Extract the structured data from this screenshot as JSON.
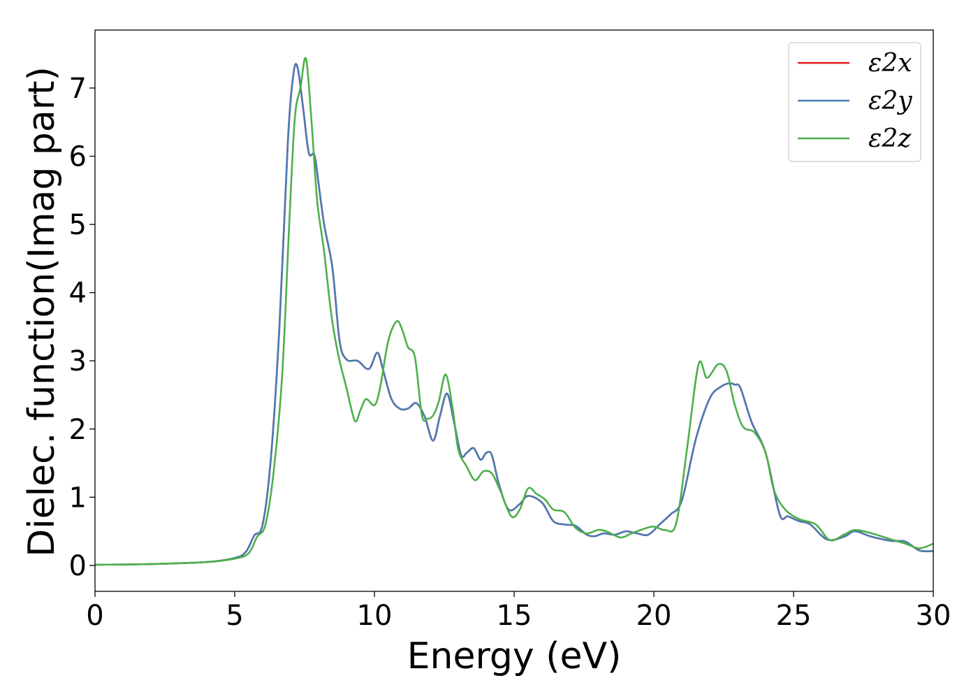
{
  "chart_data": {
    "type": "line",
    "title": "",
    "xlabel": "Energy (eV)",
    "ylabel": "Dielec. function(Imag part)",
    "xlim": [
      0,
      30
    ],
    "ylim": [
      -0.38,
      7.85
    ],
    "xticks": [
      0,
      5,
      10,
      15,
      20,
      25,
      30
    ],
    "yticks": [
      0,
      1,
      2,
      3,
      4,
      5,
      6,
      7
    ],
    "grid": false,
    "legend_position": "top-right",
    "series": [
      {
        "name": "ε2x",
        "color": "#e41a1c",
        "x": [
          0,
          2,
          4,
          5,
          5.4,
          5.7,
          6.0,
          6.3,
          6.6,
          6.9,
          7.1,
          7.25,
          7.45,
          7.65,
          7.85,
          8.0,
          8.2,
          8.5,
          8.75,
          9.0,
          9.4,
          9.8,
          10.1,
          10.3,
          10.6,
          10.9,
          11.2,
          11.5,
          11.8,
          12.1,
          12.35,
          12.6,
          12.85,
          13.1,
          13.3,
          13.55,
          13.8,
          14.0,
          14.2,
          14.45,
          14.8,
          15.2,
          15.5,
          16.0,
          16.4,
          16.8,
          17.2,
          17.6,
          17.9,
          18.2,
          18.6,
          19.0,
          19.4,
          19.8,
          20.2,
          20.6,
          21.0,
          21.5,
          22.0,
          22.4,
          22.7,
          22.9,
          23.1,
          23.5,
          24.0,
          24.5,
          24.8,
          25.2,
          25.6,
          26.2,
          26.8,
          27.2,
          27.8,
          28.5,
          29.0,
          29.5,
          30.0
        ],
        "values": [
          0.01,
          0.02,
          0.05,
          0.11,
          0.2,
          0.44,
          0.6,
          1.6,
          3.5,
          6.2,
          7.2,
          7.3,
          6.7,
          6.05,
          6.02,
          5.6,
          5.0,
          4.35,
          3.3,
          3.02,
          3.0,
          2.88,
          3.12,
          2.88,
          2.45,
          2.3,
          2.3,
          2.38,
          2.18,
          1.83,
          2.2,
          2.52,
          2.1,
          1.62,
          1.65,
          1.72,
          1.55,
          1.65,
          1.62,
          1.2,
          0.82,
          0.9,
          1.02,
          0.92,
          0.65,
          0.6,
          0.58,
          0.45,
          0.43,
          0.47,
          0.45,
          0.5,
          0.47,
          0.45,
          0.6,
          0.75,
          0.95,
          1.85,
          2.45,
          2.62,
          2.67,
          2.65,
          2.6,
          2.1,
          1.65,
          0.75,
          0.72,
          0.65,
          0.6,
          0.38,
          0.42,
          0.5,
          0.42,
          0.36,
          0.35,
          0.22,
          0.21
        ]
      },
      {
        "name": "ε2y",
        "color": "#4a7bb4",
        "x": [
          0,
          2,
          4,
          5,
          5.4,
          5.7,
          6.0,
          6.3,
          6.6,
          6.9,
          7.1,
          7.25,
          7.45,
          7.65,
          7.85,
          8.0,
          8.2,
          8.5,
          8.75,
          9.0,
          9.4,
          9.8,
          10.1,
          10.3,
          10.6,
          10.9,
          11.2,
          11.5,
          11.8,
          12.1,
          12.35,
          12.6,
          12.85,
          13.1,
          13.3,
          13.55,
          13.8,
          14.0,
          14.2,
          14.45,
          14.8,
          15.2,
          15.5,
          16.0,
          16.4,
          16.8,
          17.2,
          17.6,
          17.9,
          18.2,
          18.6,
          19.0,
          19.4,
          19.8,
          20.2,
          20.6,
          21.0,
          21.5,
          22.0,
          22.4,
          22.7,
          22.9,
          23.1,
          23.5,
          24.0,
          24.5,
          24.8,
          25.2,
          25.6,
          26.2,
          26.8,
          27.2,
          27.8,
          28.5,
          29.0,
          29.5,
          30.0
        ],
        "values": [
          0.01,
          0.02,
          0.05,
          0.11,
          0.2,
          0.44,
          0.6,
          1.6,
          3.5,
          6.2,
          7.2,
          7.3,
          6.7,
          6.05,
          6.02,
          5.6,
          5.0,
          4.35,
          3.3,
          3.02,
          3.0,
          2.88,
          3.12,
          2.88,
          2.45,
          2.3,
          2.3,
          2.38,
          2.18,
          1.83,
          2.2,
          2.52,
          2.1,
          1.62,
          1.65,
          1.72,
          1.55,
          1.65,
          1.62,
          1.2,
          0.82,
          0.9,
          1.02,
          0.92,
          0.65,
          0.6,
          0.58,
          0.45,
          0.43,
          0.47,
          0.45,
          0.5,
          0.47,
          0.45,
          0.6,
          0.75,
          0.95,
          1.85,
          2.45,
          2.62,
          2.67,
          2.65,
          2.6,
          2.1,
          1.65,
          0.75,
          0.72,
          0.65,
          0.6,
          0.38,
          0.42,
          0.5,
          0.42,
          0.36,
          0.35,
          0.22,
          0.21
        ]
      },
      {
        "name": "ε2z",
        "color": "#4daf4a",
        "x": [
          0,
          2,
          4,
          5,
          5.5,
          5.8,
          6.1,
          6.4,
          6.7,
          6.95,
          7.15,
          7.35,
          7.55,
          7.75,
          7.95,
          8.2,
          8.45,
          8.7,
          9.0,
          9.3,
          9.5,
          9.7,
          10.0,
          10.2,
          10.5,
          10.8,
          11.0,
          11.2,
          11.45,
          11.7,
          11.9,
          12.1,
          12.3,
          12.55,
          12.8,
          13.0,
          13.3,
          13.6,
          13.9,
          14.2,
          14.5,
          14.9,
          15.2,
          15.5,
          15.8,
          16.1,
          16.4,
          16.8,
          17.2,
          17.6,
          18.0,
          18.3,
          18.8,
          19.2,
          19.6,
          20.0,
          20.4,
          20.8,
          21.2,
          21.6,
          21.9,
          22.3,
          22.6,
          22.9,
          23.2,
          23.6,
          24.0,
          24.3,
          24.7,
          25.2,
          25.8,
          26.3,
          26.8,
          27.2,
          27.8,
          28.5,
          29.0,
          29.5,
          30.0
        ],
        "values": [
          0.01,
          0.02,
          0.05,
          0.1,
          0.18,
          0.42,
          0.6,
          1.4,
          2.8,
          5.0,
          6.55,
          7.0,
          7.43,
          6.5,
          5.35,
          4.6,
          3.7,
          3.1,
          2.6,
          2.12,
          2.28,
          2.44,
          2.35,
          2.6,
          3.3,
          3.58,
          3.45,
          3.2,
          3.05,
          2.2,
          2.15,
          2.2,
          2.4,
          2.8,
          2.3,
          1.7,
          1.45,
          1.25,
          1.38,
          1.35,
          1.1,
          0.72,
          0.82,
          1.13,
          1.05,
          0.97,
          0.82,
          0.78,
          0.55,
          0.47,
          0.52,
          0.5,
          0.41,
          0.47,
          0.53,
          0.57,
          0.52,
          0.62,
          1.75,
          2.95,
          2.75,
          2.95,
          2.85,
          2.35,
          2.03,
          1.95,
          1.65,
          1.1,
          0.82,
          0.68,
          0.6,
          0.37,
          0.45,
          0.52,
          0.47,
          0.38,
          0.32,
          0.25,
          0.32
        ]
      }
    ]
  }
}
